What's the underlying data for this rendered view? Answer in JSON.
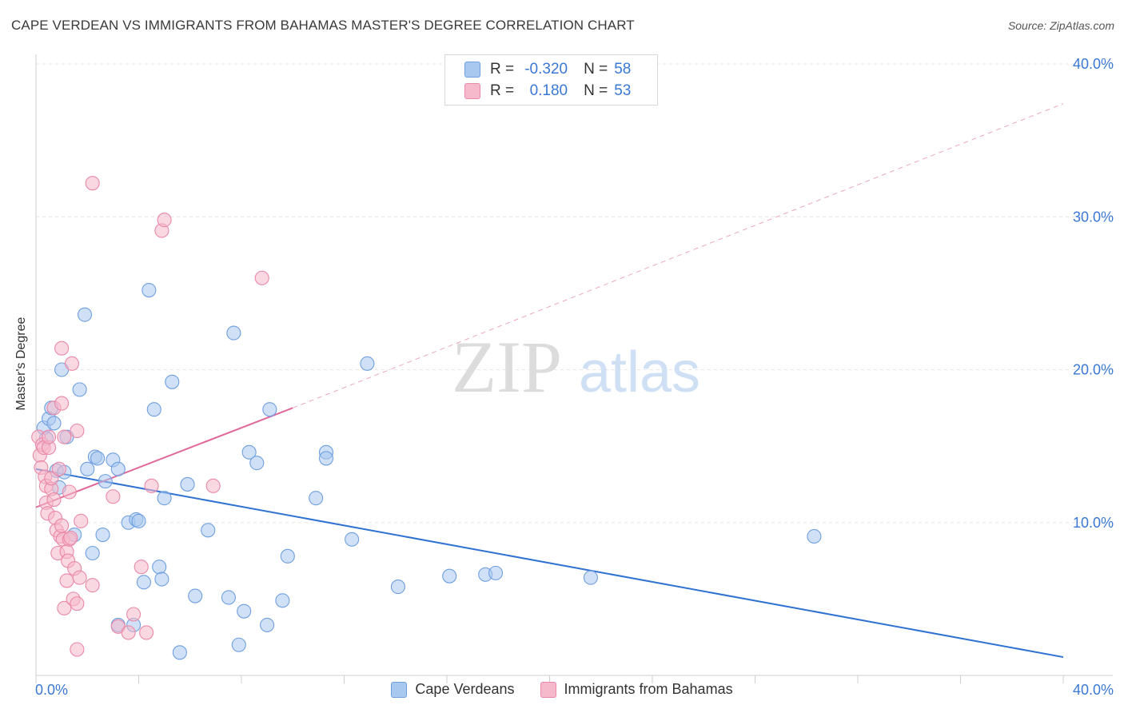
{
  "title": "CAPE VERDEAN VS IMMIGRANTS FROM BAHAMAS MASTER'S DEGREE CORRELATION CHART",
  "source": "Source: ZipAtlas.com",
  "watermark": {
    "zip": "ZIP",
    "atlas": "atlas"
  },
  "legend_stats": {
    "r_label": "R =",
    "n_label": "N =",
    "rows": [
      {
        "r": "-0.320",
        "n": "58"
      },
      {
        "r": "0.180",
        "n": "53"
      }
    ]
  },
  "bottom_legend": [
    "Cape Verdeans",
    "Immigrants from Bahamas"
  ],
  "colors": {
    "blue_fill": "#a9c8f0",
    "blue_stroke": "#6f9fe0",
    "blue_line": "#2f72d2",
    "pink_fill": "#f6b8cb",
    "pink_stroke": "#ea88a8",
    "pink_line": "#e0699a",
    "tick_color": "#3a78d4"
  },
  "chart_data": {
    "type": "scatter",
    "title": "CAPE VERDEAN VS IMMIGRANTS FROM BAHAMAS MASTER'S DEGREE CORRELATION CHART",
    "xlabel": "",
    "ylabel": "Master's Degree",
    "xlim": [
      0,
      40
    ],
    "ylim": [
      0,
      40
    ],
    "x_tick_labels": [
      "0.0%",
      "40.0%"
    ],
    "y_ticks": [
      10,
      20,
      30,
      40
    ],
    "y_tick_labels": [
      "10.0%",
      "20.0%",
      "30.0%",
      "40.0%"
    ],
    "grid": true,
    "series": [
      {
        "name": "Cape Verdeans",
        "r": -0.32,
        "n": 58,
        "trend": {
          "x": [
            0,
            40
          ],
          "y": [
            13.5,
            1.2
          ],
          "style": "solid"
        },
        "points": [
          [
            0.3,
            16.2
          ],
          [
            0.4,
            15.5
          ],
          [
            0.5,
            16.8
          ],
          [
            0.6,
            17.5
          ],
          [
            0.7,
            16.5
          ],
          [
            0.8,
            13.4
          ],
          [
            0.9,
            12.3
          ],
          [
            1.0,
            20.0
          ],
          [
            1.1,
            13.3
          ],
          [
            1.2,
            15.6
          ],
          [
            1.5,
            9.2
          ],
          [
            1.7,
            18.7
          ],
          [
            1.9,
            23.6
          ],
          [
            2.0,
            13.5
          ],
          [
            2.2,
            8.0
          ],
          [
            2.3,
            14.3
          ],
          [
            2.4,
            14.2
          ],
          [
            2.6,
            9.2
          ],
          [
            2.7,
            12.7
          ],
          [
            3.0,
            14.1
          ],
          [
            3.2,
            13.5
          ],
          [
            3.2,
            3.3
          ],
          [
            3.6,
            10.0
          ],
          [
            3.8,
            3.3
          ],
          [
            3.9,
            10.2
          ],
          [
            4.0,
            10.1
          ],
          [
            4.2,
            6.1
          ],
          [
            4.4,
            25.2
          ],
          [
            4.6,
            17.4
          ],
          [
            4.8,
            7.1
          ],
          [
            4.9,
            6.3
          ],
          [
            5.0,
            11.6
          ],
          [
            5.3,
            19.2
          ],
          [
            5.6,
            1.5
          ],
          [
            5.9,
            12.5
          ],
          [
            6.2,
            5.2
          ],
          [
            6.7,
            9.5
          ],
          [
            7.5,
            5.1
          ],
          [
            7.7,
            22.4
          ],
          [
            7.9,
            2.0
          ],
          [
            8.1,
            4.2
          ],
          [
            8.3,
            14.6
          ],
          [
            8.6,
            13.9
          ],
          [
            9.0,
            3.3
          ],
          [
            9.1,
            17.4
          ],
          [
            9.6,
            4.9
          ],
          [
            9.8,
            7.8
          ],
          [
            10.9,
            11.6
          ],
          [
            11.3,
            14.6
          ],
          [
            11.3,
            14.2
          ],
          [
            12.3,
            8.9
          ],
          [
            12.9,
            20.4
          ],
          [
            14.1,
            5.8
          ],
          [
            16.1,
            6.5
          ],
          [
            17.5,
            6.6
          ],
          [
            17.9,
            6.7
          ],
          [
            21.6,
            6.4
          ],
          [
            30.3,
            9.1
          ]
        ]
      },
      {
        "name": "Immigrants from Bahamas",
        "r": 0.18,
        "n": 53,
        "trend": {
          "x": [
            0,
            10
          ],
          "y": [
            11.0,
            17.5
          ],
          "style": "solid",
          "extended": {
            "x": [
              10,
              40
            ],
            "y": [
              17.5,
              37.4
            ],
            "style": "dashed"
          }
        },
        "points": [
          [
            0.1,
            15.6
          ],
          [
            0.15,
            14.4
          ],
          [
            0.2,
            13.6
          ],
          [
            0.25,
            15.1
          ],
          [
            0.3,
            14.9
          ],
          [
            0.35,
            13.0
          ],
          [
            0.4,
            12.4
          ],
          [
            0.4,
            11.3
          ],
          [
            0.45,
            10.6
          ],
          [
            0.5,
            14.9
          ],
          [
            0.5,
            15.6
          ],
          [
            0.6,
            12.2
          ],
          [
            0.6,
            12.9
          ],
          [
            0.7,
            17.5
          ],
          [
            0.7,
            11.5
          ],
          [
            0.75,
            10.3
          ],
          [
            0.8,
            9.5
          ],
          [
            0.85,
            8.0
          ],
          [
            0.9,
            13.5
          ],
          [
            0.95,
            9.1
          ],
          [
            1.0,
            9.8
          ],
          [
            1.0,
            17.8
          ],
          [
            1.0,
            21.4
          ],
          [
            1.05,
            8.9
          ],
          [
            1.1,
            15.6
          ],
          [
            1.1,
            4.4
          ],
          [
            1.2,
            8.1
          ],
          [
            1.2,
            6.2
          ],
          [
            1.25,
            7.5
          ],
          [
            1.3,
            12.0
          ],
          [
            1.3,
            8.9
          ],
          [
            1.4,
            20.4
          ],
          [
            1.45,
            5.0
          ],
          [
            1.5,
            7.0
          ],
          [
            1.6,
            16.0
          ],
          [
            1.6,
            4.7
          ],
          [
            1.6,
            1.7
          ],
          [
            1.7,
            6.4
          ],
          [
            1.75,
            10.1
          ],
          [
            2.2,
            5.9
          ],
          [
            2.2,
            32.2
          ],
          [
            3.0,
            11.7
          ],
          [
            3.2,
            3.2
          ],
          [
            3.6,
            2.8
          ],
          [
            3.8,
            4.0
          ],
          [
            4.1,
            7.1
          ],
          [
            4.3,
            2.8
          ],
          [
            4.5,
            12.4
          ],
          [
            4.9,
            29.1
          ],
          [
            5.0,
            29.8
          ],
          [
            6.9,
            12.4
          ],
          [
            8.8,
            26.0
          ],
          [
            1.35,
            9.0
          ]
        ]
      }
    ]
  }
}
